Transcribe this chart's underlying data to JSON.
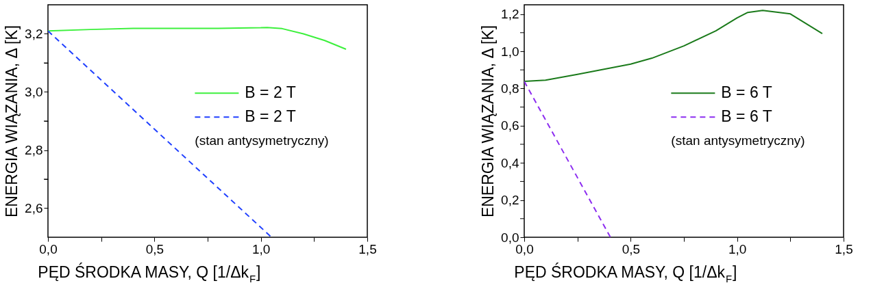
{
  "chart_data": [
    {
      "type": "line",
      "xlabel": "PĘD ŚRODKA MASY, Q [1/Δk$_{F}$]",
      "ylabel": "ENERGIA WIĄZANIA, Δ [K]",
      "xlim": [
        0,
        1.5
      ],
      "xticks": [
        {
          "value": 0,
          "label": "0,0"
        },
        {
          "value": 0.25,
          "label": null
        },
        {
          "value": 0.5,
          "label": "0,5"
        },
        {
          "value": 0.75,
          "label": null
        },
        {
          "value": 1.0,
          "label": "1,0"
        },
        {
          "value": 1.25,
          "label": null
        },
        {
          "value": 1.5,
          "label": "1,5"
        }
      ],
      "ylim": [
        2.5,
        3.3
      ],
      "yticks": [
        {
          "value": 2.6,
          "label": "2,6"
        },
        {
          "value": 2.7,
          "label": null
        },
        {
          "value": 2.8,
          "label": "2,8"
        },
        {
          "value": 2.9,
          "label": null
        },
        {
          "value": 3.0,
          "label": "3,0"
        },
        {
          "value": 3.1,
          "label": null
        },
        {
          "value": 3.2,
          "label": "3,2"
        }
      ],
      "legend": "right",
      "grid": false,
      "series": [
        {
          "name": "B = 2 T",
          "color": "#3cf03c",
          "line_style": "solid",
          "x": [
            0,
            0.2,
            0.4,
            0.6,
            0.8,
            1.0,
            1.03,
            1.1,
            1.2,
            1.3,
            1.4
          ],
          "values": [
            3.21,
            3.215,
            3.219,
            3.219,
            3.219,
            3.221,
            3.222,
            3.218,
            3.2,
            3.177,
            3.147
          ]
        },
        {
          "name": "B = 2 T",
          "color": "#1f3fff",
          "line_style": "dashed",
          "x": [
            0,
            1.05
          ],
          "values": [
            3.21,
            2.5
          ]
        }
      ],
      "annotations": [
        "(stan antysymetryczny)"
      ]
    },
    {
      "type": "line",
      "xlabel": "PĘD ŚRODKA MASY, Q [1/Δk$_{F}$]",
      "ylabel": "ENERGIA WIĄZANIA, Δ [K]",
      "xlim": [
        0,
        1.5
      ],
      "xticks": [
        {
          "value": 0,
          "label": "0,0"
        },
        {
          "value": 0.25,
          "label": null
        },
        {
          "value": 0.5,
          "label": "0,5"
        },
        {
          "value": 0.75,
          "label": null
        },
        {
          "value": 1.0,
          "label": "1,0"
        },
        {
          "value": 1.25,
          "label": null
        },
        {
          "value": 1.5,
          "label": "1,5"
        }
      ],
      "ylim": [
        0,
        1.25
      ],
      "yticks": [
        {
          "value": 0,
          "label": "0,0"
        },
        {
          "value": 0.1,
          "label": null
        },
        {
          "value": 0.2,
          "label": "0,2"
        },
        {
          "value": 0.3,
          "label": null
        },
        {
          "value": 0.4,
          "label": "0,4"
        },
        {
          "value": 0.5,
          "label": null
        },
        {
          "value": 0.6,
          "label": "0,6"
        },
        {
          "value": 0.7,
          "label": null
        },
        {
          "value": 0.8,
          "label": "0,8"
        },
        {
          "value": 0.9,
          "label": null
        },
        {
          "value": 1.0,
          "label": "1,0"
        },
        {
          "value": 1.1,
          "label": null
        },
        {
          "value": 1.2,
          "label": "1,2"
        }
      ],
      "legend": "right",
      "grid": false,
      "series": [
        {
          "name": "B = 6 T",
          "color": "#1a7a1a",
          "line_style": "solid",
          "x": [
            0,
            0.1,
            0.25,
            0.5,
            0.6,
            0.75,
            0.9,
            1.0,
            1.05,
            1.12,
            1.25,
            1.4
          ],
          "values": [
            0.838,
            0.845,
            0.876,
            0.931,
            0.963,
            1.029,
            1.11,
            1.18,
            1.209,
            1.22,
            1.201,
            1.095
          ]
        },
        {
          "name": "B = 6 T",
          "color": "#8c2cf0",
          "line_style": "dashed",
          "x": [
            0,
            0.405
          ],
          "values": [
            0.838,
            0
          ]
        }
      ],
      "annotations": [
        "(stan antysymetryczny)"
      ]
    }
  ]
}
